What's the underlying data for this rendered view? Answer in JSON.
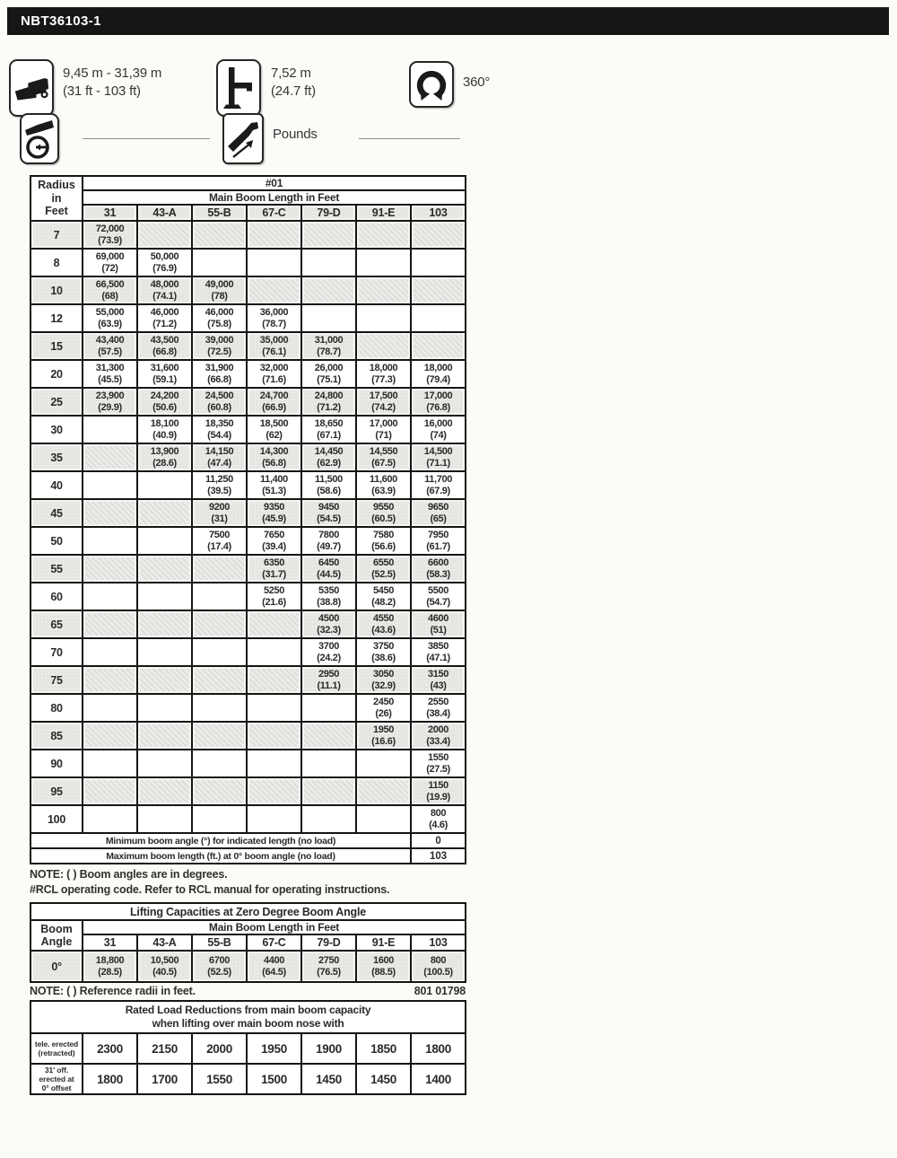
{
  "title": "NBT36103-1",
  "specs": {
    "boom_range_metric": "9,45 m - 31,39 m",
    "boom_range_imperial": "(31 ft - 103 ft)",
    "outrigger_metric": "7,52 m",
    "outrigger_imperial": "(24.7 ft)",
    "swing_range": "360°",
    "units_label": "Pounds"
  },
  "main_table": {
    "corner_label": "Radius\nin\nFeet",
    "code": "#01",
    "boom_header": "Main Boom Length in Feet",
    "columns": [
      "31",
      "43-A",
      "55-B",
      "67-C",
      "79-D",
      "91-E",
      "103"
    ],
    "rows": [
      {
        "radius": "7",
        "shaded": true,
        "cells": [
          [
            "72,000",
            "(73.9)"
          ],
          null,
          null,
          null,
          null,
          null,
          null
        ]
      },
      {
        "radius": "8",
        "shaded": false,
        "cells": [
          [
            "69,000",
            "(72)"
          ],
          [
            "50,000",
            "(76.9)"
          ],
          null,
          null,
          null,
          null,
          null
        ]
      },
      {
        "radius": "10",
        "shaded": true,
        "cells": [
          [
            "66,500",
            "(68)"
          ],
          [
            "48,000",
            "(74.1)"
          ],
          [
            "49,000",
            "(78)"
          ],
          null,
          null,
          null,
          null
        ]
      },
      {
        "radius": "12",
        "shaded": false,
        "cells": [
          [
            "55,000",
            "(63.9)"
          ],
          [
            "46,000",
            "(71.2)"
          ],
          [
            "46,000",
            "(75.8)"
          ],
          [
            "36,000",
            "(78.7)"
          ],
          null,
          null,
          null
        ]
      },
      {
        "radius": "15",
        "shaded": true,
        "cells": [
          [
            "43,400",
            "(57.5)"
          ],
          [
            "43,500",
            "(66.8)"
          ],
          [
            "39,000",
            "(72.5)"
          ],
          [
            "35,000",
            "(76.1)"
          ],
          [
            "31,000",
            "(78.7)"
          ],
          null,
          null
        ]
      },
      {
        "radius": "20",
        "shaded": false,
        "cells": [
          [
            "31,300",
            "(45.5)"
          ],
          [
            "31,600",
            "(59.1)"
          ],
          [
            "31,900",
            "(66.8)"
          ],
          [
            "32,000",
            "(71.6)"
          ],
          [
            "26,000",
            "(75.1)"
          ],
          [
            "18,000",
            "(77.3)"
          ],
          [
            "18,000",
            "(79.4)"
          ]
        ]
      },
      {
        "radius": "25",
        "shaded": true,
        "cells": [
          [
            "23,900",
            "(29.9)"
          ],
          [
            "24,200",
            "(50.6)"
          ],
          [
            "24,500",
            "(60.8)"
          ],
          [
            "24,700",
            "(66.9)"
          ],
          [
            "24,800",
            "(71.2)"
          ],
          [
            "17,500",
            "(74.2)"
          ],
          [
            "17,000",
            "(76.8)"
          ]
        ]
      },
      {
        "radius": "30",
        "shaded": false,
        "cells": [
          null,
          [
            "18,100",
            "(40.9)"
          ],
          [
            "18,350",
            "(54.4)"
          ],
          [
            "18,500",
            "(62)"
          ],
          [
            "18,650",
            "(67.1)"
          ],
          [
            "17,000",
            "(71)"
          ],
          [
            "16,000",
            "(74)"
          ]
        ]
      },
      {
        "radius": "35",
        "shaded": true,
        "cells": [
          null,
          [
            "13,900",
            "(28.6)"
          ],
          [
            "14,150",
            "(47.4)"
          ],
          [
            "14,300",
            "(56.8)"
          ],
          [
            "14,450",
            "(62.9)"
          ],
          [
            "14,550",
            "(67.5)"
          ],
          [
            "14,500",
            "(71.1)"
          ]
        ]
      },
      {
        "radius": "40",
        "shaded": false,
        "cells": [
          null,
          null,
          [
            "11,250",
            "(39.5)"
          ],
          [
            "11,400",
            "(51.3)"
          ],
          [
            "11,500",
            "(58.6)"
          ],
          [
            "11,600",
            "(63.9)"
          ],
          [
            "11,700",
            "(67.9)"
          ]
        ]
      },
      {
        "radius": "45",
        "shaded": true,
        "cells": [
          null,
          null,
          [
            "9200",
            "(31)"
          ],
          [
            "9350",
            "(45.9)"
          ],
          [
            "9450",
            "(54.5)"
          ],
          [
            "9550",
            "(60.5)"
          ],
          [
            "9650",
            "(65)"
          ]
        ]
      },
      {
        "radius": "50",
        "shaded": false,
        "cells": [
          null,
          null,
          [
            "7500",
            "(17.4)"
          ],
          [
            "7650",
            "(39.4)"
          ],
          [
            "7800",
            "(49.7)"
          ],
          [
            "7580",
            "(56.6)"
          ],
          [
            "7950",
            "(61.7)"
          ]
        ]
      },
      {
        "radius": "55",
        "shaded": true,
        "cells": [
          null,
          null,
          null,
          [
            "6350",
            "(31.7)"
          ],
          [
            "6450",
            "(44.5)"
          ],
          [
            "6550",
            "(52.5)"
          ],
          [
            "6600",
            "(58.3)"
          ]
        ]
      },
      {
        "radius": "60",
        "shaded": false,
        "cells": [
          null,
          null,
          null,
          [
            "5250",
            "(21.6)"
          ],
          [
            "5350",
            "(38.8)"
          ],
          [
            "5450",
            "(48.2)"
          ],
          [
            "5500",
            "(54.7)"
          ]
        ]
      },
      {
        "radius": "65",
        "shaded": true,
        "cells": [
          null,
          null,
          null,
          null,
          [
            "4500",
            "(32.3)"
          ],
          [
            "4550",
            "(43.6)"
          ],
          [
            "4600",
            "(51)"
          ]
        ]
      },
      {
        "radius": "70",
        "shaded": false,
        "cells": [
          null,
          null,
          null,
          null,
          [
            "3700",
            "(24.2)"
          ],
          [
            "3750",
            "(38.6)"
          ],
          [
            "3850",
            "(47.1)"
          ]
        ]
      },
      {
        "radius": "75",
        "shaded": true,
        "cells": [
          null,
          null,
          null,
          null,
          [
            "2950",
            "(11.1)"
          ],
          [
            "3050",
            "(32.9)"
          ],
          [
            "3150",
            "(43)"
          ]
        ]
      },
      {
        "radius": "80",
        "shaded": false,
        "cells": [
          null,
          null,
          null,
          null,
          null,
          [
            "2450",
            "(26)"
          ],
          [
            "2550",
            "(38.4)"
          ]
        ]
      },
      {
        "radius": "85",
        "shaded": true,
        "cells": [
          null,
          null,
          null,
          null,
          null,
          [
            "1950",
            "(16.6)"
          ],
          [
            "2000",
            "(33.4)"
          ]
        ]
      },
      {
        "radius": "90",
        "shaded": false,
        "cells": [
          null,
          null,
          null,
          null,
          null,
          null,
          [
            "1550",
            "(27.5)"
          ]
        ]
      },
      {
        "radius": "95",
        "shaded": true,
        "cells": [
          null,
          null,
          null,
          null,
          null,
          null,
          [
            "1150",
            "(19.9)"
          ]
        ]
      },
      {
        "radius": "100",
        "shaded": false,
        "cells": [
          null,
          null,
          null,
          null,
          null,
          null,
          [
            "800",
            "(4.6)"
          ]
        ]
      }
    ],
    "footer_rows": [
      {
        "label": "Minimum boom angle (°) for indicated length (no load)",
        "value": "0"
      },
      {
        "label": "Maximum boom length (ft.) at 0° boom angle (no load)",
        "value": "103"
      }
    ]
  },
  "notes_main": {
    "line1": "NOTE: ( ) Boom angles are in degrees.",
    "line2": "#RCL operating code. Refer to RCL manual for operating instructions."
  },
  "zero_table": {
    "title": "Lifting Capacities at Zero Degree Boom Angle",
    "corner_label": "Boom\nAngle",
    "boom_header": "Main Boom Length in Feet",
    "columns": [
      "31",
      "43-A",
      "55-B",
      "67-C",
      "79-D",
      "91-E",
      "103"
    ],
    "rows": [
      {
        "angle": "0°",
        "cells": [
          [
            "18,800",
            "(28.5)"
          ],
          [
            "10,500",
            "(40.5)"
          ],
          [
            "6700",
            "(52.5)"
          ],
          [
            "4400",
            "(64.5)"
          ],
          [
            "2750",
            "(76.5)"
          ],
          [
            "1600",
            "(88.5)"
          ],
          [
            "800",
            "(100.5)"
          ]
        ]
      }
    ]
  },
  "zero_note": {
    "text": "NOTE: ( ) Reference radii in feet.",
    "doc_number": "801 01798"
  },
  "reductions_table": {
    "title": "Rated Load Reductions from main boom capacity\nwhen lifting over main boom nose with",
    "rows": [
      {
        "label": "tele. erected\n(retracted)",
        "values": [
          "2300",
          "2150",
          "2000",
          "1950",
          "1900",
          "1850",
          "1800"
        ]
      },
      {
        "label": "31' off.\nerected at\n0° offset",
        "values": [
          "1800",
          "1700",
          "1550",
          "1500",
          "1450",
          "1450",
          "1400"
        ]
      }
    ]
  }
}
